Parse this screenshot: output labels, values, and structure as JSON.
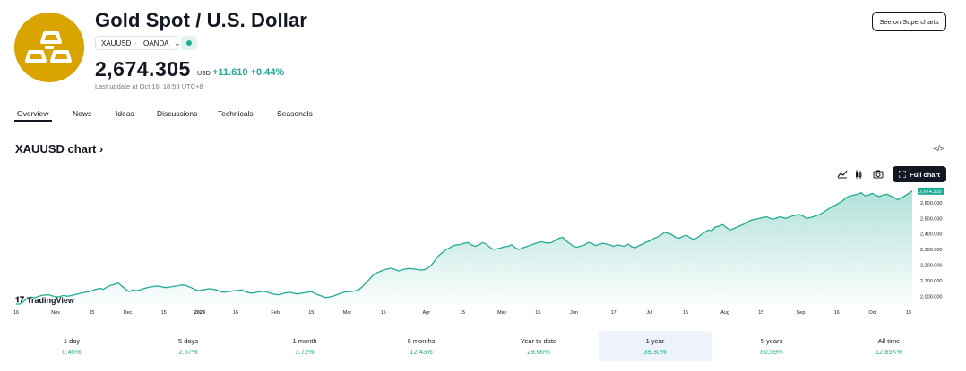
{
  "header": {
    "title": "Gold Spot / U.S. Dollar",
    "symbol": "XAUUSD",
    "exchange": "OANDA",
    "price": "2,674.305",
    "currency": "USD",
    "change": "+11.610",
    "change_pct": "+0.44%",
    "last_update": "Last update at Oct 16, 18:59 UTC+8",
    "supercharts_label": "See on Supercharts"
  },
  "tabs": [
    {
      "label": "Overview"
    },
    {
      "label": "News"
    },
    {
      "label": "Ideas"
    },
    {
      "label": "Discussions"
    },
    {
      "label": "Technicals"
    },
    {
      "label": "Seasonals"
    }
  ],
  "chart_section": {
    "title": "XAUUSD chart",
    "chevron": "›",
    "full_chart_label": "Full chart",
    "brand": "TradingView",
    "price_tag": "2,674.305"
  },
  "periods": [
    {
      "label": "1 day",
      "value": "0.45%"
    },
    {
      "label": "5 days",
      "value": "2.57%"
    },
    {
      "label": "1 month",
      "value": "3.72%"
    },
    {
      "label": "6 months",
      "value": "12.43%"
    },
    {
      "label": "Year to date",
      "value": "29.66%"
    },
    {
      "label": "1 year",
      "value": "39.30%",
      "selected": true
    },
    {
      "label": "5 years",
      "value": "80.59%"
    },
    {
      "label": "All time",
      "value": "12.85K%"
    }
  ],
  "colors": {
    "accent": "#22ab94",
    "logo_bg": "#D9A300",
    "dark": "#131722"
  },
  "chart_data": {
    "type": "area",
    "x_tick_labels": [
      "16",
      "Nov",
      "15",
      "Dec",
      "15",
      "2024",
      "16",
      "Feb",
      "15",
      "Mar",
      "15",
      "Apr",
      "15",
      "May",
      "15",
      "Jun",
      "17",
      "Jul",
      "15",
      "Aug",
      "15",
      "Sep",
      "16",
      "Oct",
      "15"
    ],
    "y_tick_labels": [
      "2,600.000",
      "2,500.000",
      "2,400.000",
      "2,300.000",
      "2,200.000",
      "2,100.000",
      "2,000.000"
    ],
    "ylim": [
      1950,
      2720
    ],
    "y_ticks": [
      2600,
      2500,
      2400,
      2300,
      2200,
      2100,
      2000
    ],
    "x_ticks": [
      0,
      11,
      21,
      31,
      41,
      51,
      61,
      72,
      82,
      92,
      102,
      114,
      124,
      135,
      145,
      155,
      166,
      176,
      186,
      197,
      207,
      218,
      228,
      238,
      248
    ],
    "x_max": 249,
    "values": [
      1925,
      1940,
      1965,
      1985,
      1995,
      1990,
      1998,
      2005,
      2008,
      2010,
      2002,
      1995,
      1998,
      2005,
      2000,
      2004,
      2010,
      2015,
      2020,
      2025,
      2030,
      2038,
      2045,
      2050,
      2045,
      2060,
      2070,
      2075,
      2085,
      2065,
      2045,
      2030,
      2040,
      2035,
      2040,
      2048,
      2055,
      2060,
      2063,
      2065,
      2060,
      2055,
      2058,
      2062,
      2065,
      2070,
      2072,
      2065,
      2055,
      2045,
      2035,
      2040,
      2043,
      2048,
      2045,
      2040,
      2030,
      2025,
      2028,
      2032,
      2035,
      2038,
      2040,
      2028,
      2022,
      2020,
      2025,
      2028,
      2032,
      2025,
      2018,
      2012,
      2010,
      2015,
      2022,
      2025,
      2020,
      2015,
      2018,
      2022,
      2025,
      2030,
      2018,
      2008,
      2000,
      1992,
      1995,
      2000,
      2010,
      2018,
      2025,
      2028,
      2030,
      2035,
      2040,
      2060,
      2085,
      2110,
      2135,
      2150,
      2160,
      2170,
      2175,
      2180,
      2172,
      2162,
      2170,
      2175,
      2178,
      2175,
      2172,
      2168,
      2170,
      2180,
      2200,
      2230,
      2260,
      2280,
      2300,
      2310,
      2325,
      2330,
      2332,
      2340,
      2345,
      2330,
      2320,
      2330,
      2345,
      2335,
      2315,
      2300,
      2305,
      2310,
      2318,
      2320,
      2330,
      2312,
      2300,
      2310,
      2318,
      2325,
      2335,
      2342,
      2350,
      2345,
      2340,
      2345,
      2358,
      2372,
      2378,
      2355,
      2338,
      2320,
      2315,
      2322,
      2328,
      2345,
      2340,
      2325,
      2332,
      2340,
      2335,
      2330,
      2320,
      2330,
      2325,
      2320,
      2335,
      2318,
      2312,
      2325,
      2335,
      2348,
      2355,
      2370,
      2380,
      2392,
      2410,
      2405,
      2395,
      2378,
      2372,
      2385,
      2392,
      2375,
      2365,
      2375,
      2395,
      2410,
      2425,
      2420,
      2445,
      2450,
      2460,
      2440,
      2425,
      2435,
      2445,
      2455,
      2465,
      2480,
      2490,
      2495,
      2500,
      2505,
      2510,
      2500,
      2495,
      2505,
      2510,
      2500,
      2505,
      2515,
      2520,
      2525,
      2515,
      2500,
      2505,
      2512,
      2520,
      2530,
      2545,
      2560,
      2575,
      2585,
      2600,
      2615,
      2635,
      2645,
      2650,
      2655,
      2665,
      2645,
      2650,
      2660,
      2648,
      2640,
      2650,
      2655,
      2645,
      2635,
      2620,
      2630,
      2645,
      2660,
      2675
    ]
  }
}
